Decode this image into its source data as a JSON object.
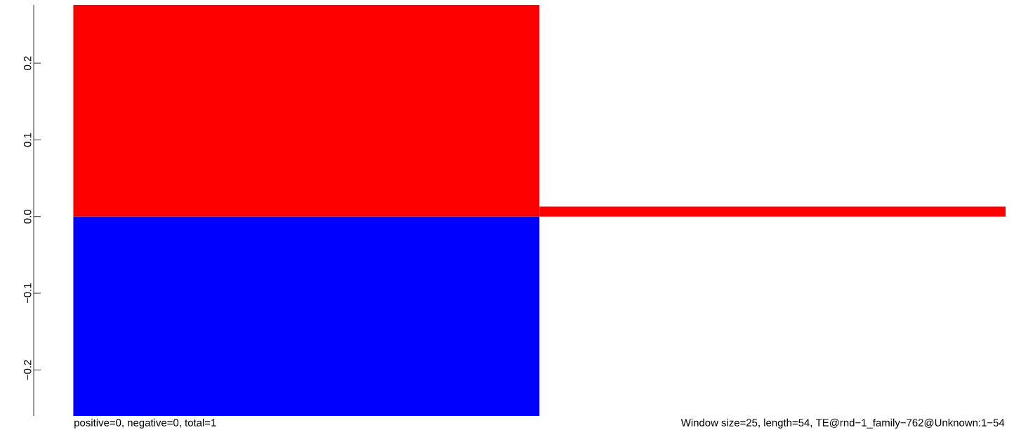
{
  "chart_data": {
    "type": "bar",
    "stacked": true,
    "categories": [
      null,
      null
    ],
    "series": [
      {
        "color": "#ff0000",
        "values": [
          0.276,
          0.013
        ]
      },
      {
        "color": "#0000ff",
        "values": [
          -0.26,
          null
        ]
      }
    ],
    "ylim": [
      -0.26,
      0.276
    ],
    "yticks": [
      {
        "value": -0.2,
        "label": "−0.2"
      },
      {
        "value": -0.1,
        "label": "−0.1"
      },
      {
        "value": 0,
        "label": "0.0"
      },
      0.1,
      0.2
    ],
    "annotations": [
      "positive=0, negative=0, total=1",
      "Window size=25, length=54, TE@rnd−1_family−762@Unknown:1−54"
    ]
  }
}
